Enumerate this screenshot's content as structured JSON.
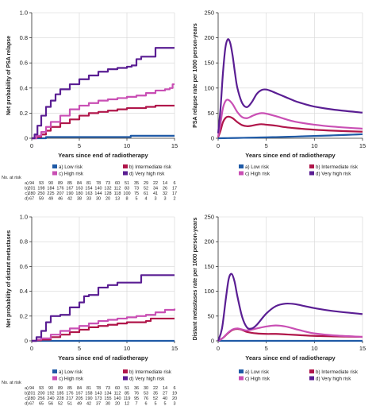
{
  "colors": {
    "low": "#1f5aa6",
    "intermediate": "#b0164a",
    "high": "#c94fb4",
    "very_high": "#5a1e93"
  },
  "legend": {
    "low": "a) Low risk",
    "intermediate": "b) Intermediate risk",
    "high": "c) High risk",
    "very_high": "d) Very high risk"
  },
  "risk_table": {
    "title": "No. at risk",
    "row_labels": [
      "a)",
      "b)",
      "c)",
      "d)"
    ]
  },
  "chart_data": [
    {
      "type": "line",
      "step": true,
      "xlabel": "Years since end of radiotherapy",
      "ylabel": "Net probability of PSA relapse",
      "xlim": [
        0,
        15
      ],
      "ylim": [
        0,
        1
      ],
      "xticks": [
        "0",
        "5",
        "10",
        "15"
      ],
      "yticks": [
        "0",
        "0.2",
        "0.4",
        "0.6",
        "0.8",
        "1.0"
      ],
      "legend_position": "below",
      "series": [
        {
          "name": "a) Low risk",
          "key": "low",
          "x": [
            0,
            0.8,
            1.5,
            10.3,
            10.4,
            15
          ],
          "y": [
            0,
            0,
            0.01,
            0.01,
            0.02,
            0.02
          ]
        },
        {
          "name": "b) Intermediate risk",
          "key": "intermediate",
          "x": [
            0,
            0.5,
            1,
            1.5,
            2,
            3,
            4,
            5,
            6,
            7,
            8,
            9,
            10,
            11,
            12,
            13,
            15
          ],
          "y": [
            0,
            0.01,
            0.03,
            0.06,
            0.09,
            0.12,
            0.15,
            0.18,
            0.2,
            0.21,
            0.22,
            0.23,
            0.24,
            0.24,
            0.25,
            0.26,
            0.26
          ]
        },
        {
          "name": "c) High risk",
          "key": "high",
          "x": [
            0,
            0.5,
            1,
            1.5,
            2,
            3,
            4,
            5,
            6,
            7,
            8,
            9,
            10,
            11,
            12,
            13,
            14,
            14.5,
            14.8,
            15
          ],
          "y": [
            0,
            0.02,
            0.05,
            0.09,
            0.13,
            0.18,
            0.23,
            0.26,
            0.28,
            0.3,
            0.31,
            0.32,
            0.33,
            0.34,
            0.36,
            0.38,
            0.39,
            0.4,
            0.43,
            0.43
          ]
        },
        {
          "name": "d) Very high risk",
          "key": "very_high",
          "x": [
            0,
            0.3,
            0.6,
            1,
            1.5,
            2,
            2.5,
            3,
            4,
            5,
            6,
            7,
            8,
            9,
            10,
            10.5,
            11,
            11.5,
            12,
            12.5,
            13,
            15
          ],
          "y": [
            0,
            0.03,
            0.1,
            0.18,
            0.25,
            0.3,
            0.35,
            0.39,
            0.43,
            0.47,
            0.5,
            0.53,
            0.55,
            0.56,
            0.57,
            0.58,
            0.63,
            0.65,
            0.65,
            0.65,
            0.72,
            0.72
          ]
        }
      ],
      "risk_table": {
        "x": [
          0,
          1,
          2,
          3,
          4,
          5,
          6,
          7,
          8,
          9,
          10,
          11,
          12,
          13,
          14,
          15
        ],
        "rows": [
          [
            "94",
            "93",
            "90",
            "89",
            "85",
            "84",
            "81",
            "78",
            "73",
            "60",
            "51",
            "35",
            "29",
            "22",
            "14",
            "6"
          ],
          [
            "201",
            "198",
            "184",
            "176",
            "167",
            "163",
            "154",
            "140",
            "132",
            "112",
            "83",
            "73",
            "52",
            "34",
            "26",
            "17"
          ],
          [
            "280",
            "250",
            "225",
            "207",
            "190",
            "180",
            "163",
            "144",
            "128",
            "118",
            "100",
            "75",
            "61",
            "41",
            "32",
            "17"
          ],
          [
            "67",
            "59",
            "49",
            "46",
            "42",
            "38",
            "33",
            "30",
            "20",
            "13",
            "8",
            "5",
            "4",
            "3",
            "3",
            "2"
          ]
        ]
      }
    },
    {
      "type": "line",
      "xlabel": "Years since end of radiotherapy",
      "ylabel": "PSA relapse rate per 1000 person-years",
      "xlim": [
        0,
        15
      ],
      "ylim": [
        0,
        250
      ],
      "xticks": [
        "0",
        "5",
        "10",
        "15"
      ],
      "yticks": [
        "0",
        "50",
        "100",
        "150",
        "200",
        "250"
      ],
      "legend_position": "below",
      "series": [
        {
          "name": "a) Low risk",
          "key": "low",
          "x": [
            0,
            1,
            2,
            3,
            4,
            5,
            6,
            7,
            8,
            9,
            10,
            11,
            12,
            13,
            14,
            15
          ],
          "y": [
            0,
            0.3,
            0.6,
            1,
            1.4,
            1.8,
            2.3,
            2.8,
            3.3,
            3.9,
            4.5,
            5.1,
            5.8,
            6.5,
            7.2,
            8
          ]
        },
        {
          "name": "b) Intermediate risk",
          "key": "intermediate",
          "x": [
            0,
            0.25,
            0.5,
            0.8,
            1.1,
            1.5,
            2,
            2.5,
            3,
            3.5,
            4,
            4.5,
            5,
            6,
            7,
            8,
            10,
            12,
            15
          ],
          "y": [
            2,
            15,
            32,
            41,
            43,
            40,
            32,
            26,
            24,
            25,
            27,
            28,
            27,
            25,
            22,
            20,
            17,
            15,
            13
          ]
        },
        {
          "name": "c) High risk",
          "key": "high",
          "x": [
            0,
            0.25,
            0.5,
            0.8,
            1.1,
            1.5,
            2,
            2.5,
            3,
            3.5,
            4,
            4.5,
            5,
            6,
            7,
            8,
            10,
            12,
            15
          ],
          "y": [
            3,
            30,
            60,
            75,
            76,
            68,
            52,
            42,
            40,
            44,
            48,
            50,
            49,
            44,
            38,
            33,
            27,
            23,
            19
          ]
        },
        {
          "name": "d) Very high risk",
          "key": "very_high",
          "x": [
            0,
            0.25,
            0.5,
            0.75,
            1,
            1.25,
            1.5,
            1.75,
            2,
            2.5,
            3,
            3.5,
            4,
            4.5,
            5,
            5.5,
            6,
            7,
            8,
            9,
            10,
            12,
            15
          ],
          "y": [
            10,
            60,
            130,
            180,
            197,
            190,
            165,
            130,
            100,
            70,
            62,
            72,
            88,
            96,
            97,
            94,
            90,
            82,
            74,
            68,
            63,
            57,
            51
          ]
        }
      ]
    },
    {
      "type": "line",
      "step": true,
      "xlabel": "Years since end of radiotherapy",
      "ylabel": "Net probability of distant metastases",
      "xlim": [
        0,
        15
      ],
      "ylim": [
        0,
        1
      ],
      "xticks": [
        "0",
        "5",
        "10",
        "15"
      ],
      "yticks": [
        "0",
        "0.2",
        "0.4",
        "0.6",
        "0.8",
        "1.0"
      ],
      "legend_position": "below",
      "series": [
        {
          "name": "a) Low risk",
          "key": "low",
          "x": [
            0,
            15
          ],
          "y": [
            0,
            0
          ]
        },
        {
          "name": "b) Intermediate risk",
          "key": "intermediate",
          "x": [
            0,
            0.5,
            1,
            2,
            3,
            4,
            5,
            6,
            7,
            8,
            9,
            10,
            11,
            12,
            12.5,
            15
          ],
          "y": [
            0,
            0.005,
            0.01,
            0.03,
            0.05,
            0.07,
            0.09,
            0.11,
            0.12,
            0.13,
            0.14,
            0.15,
            0.15,
            0.16,
            0.18,
            0.18
          ]
        },
        {
          "name": "c) High risk",
          "key": "high",
          "x": [
            0,
            0.5,
            1,
            2,
            3,
            4,
            5,
            6,
            7,
            8,
            9,
            10,
            11,
            12,
            13,
            14,
            15
          ],
          "y": [
            0,
            0.01,
            0.02,
            0.05,
            0.08,
            0.1,
            0.12,
            0.14,
            0.16,
            0.17,
            0.18,
            0.19,
            0.2,
            0.21,
            0.23,
            0.25,
            0.26
          ]
        },
        {
          "name": "d) Very high risk",
          "key": "very_high",
          "x": [
            0,
            0.5,
            1,
            1.5,
            2,
            3,
            4,
            5,
            5.5,
            6,
            7,
            8,
            9,
            10,
            11,
            11.5,
            15
          ],
          "y": [
            0,
            0.03,
            0.08,
            0.15,
            0.2,
            0.21,
            0.27,
            0.31,
            0.36,
            0.37,
            0.43,
            0.45,
            0.47,
            0.47,
            0.47,
            0.53,
            0.53
          ]
        }
      ],
      "risk_table": {
        "x": [
          0,
          1,
          2,
          3,
          4,
          5,
          6,
          7,
          8,
          9,
          10,
          11,
          12,
          13,
          14,
          15
        ],
        "rows": [
          [
            "94",
            "93",
            "90",
            "89",
            "85",
            "84",
            "81",
            "78",
            "73",
            "60",
            "51",
            "36",
            "30",
            "22",
            "14",
            "6"
          ],
          [
            "201",
            "200",
            "192",
            "185",
            "176",
            "167",
            "158",
            "143",
            "134",
            "112",
            "85",
            "76",
            "53",
            "35",
            "27",
            "19"
          ],
          [
            "280",
            "256",
            "240",
            "228",
            "217",
            "205",
            "190",
            "173",
            "155",
            "140",
            "119",
            "95",
            "76",
            "52",
            "40",
            "20"
          ],
          [
            "67",
            "65",
            "56",
            "52",
            "51",
            "49",
            "42",
            "37",
            "30",
            "20",
            "12",
            "7",
            "6",
            "5",
            "5",
            "3"
          ]
        ]
      }
    },
    {
      "type": "line",
      "xlabel": "Years since end of radiotherapy",
      "ylabel": "Distant metastases rate per 1000 person-years",
      "xlim": [
        0,
        15
      ],
      "ylim": [
        0,
        250
      ],
      "xticks": [
        "0",
        "5",
        "10",
        "15"
      ],
      "yticks": [
        "0",
        "50",
        "100",
        "150",
        "200",
        "250"
      ],
      "legend_position": "below",
      "series": [
        {
          "name": "a) Low risk",
          "key": "low",
          "x": [
            0,
            15
          ],
          "y": [
            0,
            0
          ]
        },
        {
          "name": "b) Intermediate risk",
          "key": "intermediate",
          "x": [
            0,
            0.5,
            1,
            1.5,
            2,
            2.5,
            3,
            4,
            5,
            6,
            7,
            8,
            10,
            12,
            15
          ],
          "y": [
            0,
            6,
            15,
            22,
            24,
            22,
            18,
            15,
            14,
            14,
            13,
            12,
            10,
            9,
            8
          ]
        },
        {
          "name": "c) High risk",
          "key": "high",
          "x": [
            0,
            0.5,
            1,
            1.5,
            2,
            2.5,
            3,
            4,
            5,
            6,
            7,
            8,
            9,
            10,
            12,
            15
          ],
          "y": [
            0,
            6,
            16,
            23,
            25,
            23,
            21,
            25,
            29,
            31,
            29,
            24,
            19,
            15,
            11,
            8
          ]
        },
        {
          "name": "d) Very high risk",
          "key": "very_high",
          "x": [
            0,
            0.4,
            0.8,
            1.1,
            1.4,
            1.7,
            2,
            2.5,
            3,
            3.5,
            4,
            5,
            6,
            7,
            8,
            9,
            10,
            12,
            15
          ],
          "y": [
            0,
            25,
            85,
            125,
            135,
            120,
            90,
            48,
            27,
            25,
            32,
            55,
            70,
            75,
            74,
            70,
            66,
            60,
            54
          ]
        }
      ]
    }
  ]
}
